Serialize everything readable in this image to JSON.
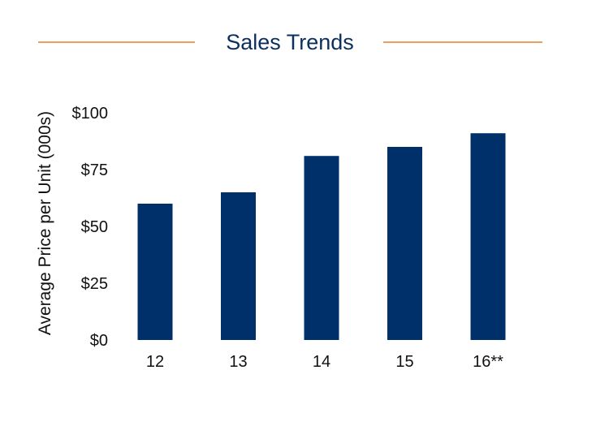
{
  "colors": {
    "bar": "#00306a",
    "title": "#0b2f5f",
    "rule": "#e8a060",
    "text": "#111111"
  },
  "chart_data": {
    "type": "bar",
    "title": "Sales Trends",
    "xlabel": "",
    "ylabel": "Average Price per Unit (000s)",
    "categories": [
      "12",
      "13",
      "14",
      "15",
      "16**"
    ],
    "values": [
      60,
      65,
      81,
      85,
      91
    ],
    "ylim": [
      0,
      100
    ],
    "yticks": [
      0,
      25,
      50,
      75,
      100
    ],
    "ytick_labels": [
      "$0",
      "$25",
      "$50",
      "$75",
      "$100"
    ],
    "grid": false,
    "legend": "none"
  }
}
